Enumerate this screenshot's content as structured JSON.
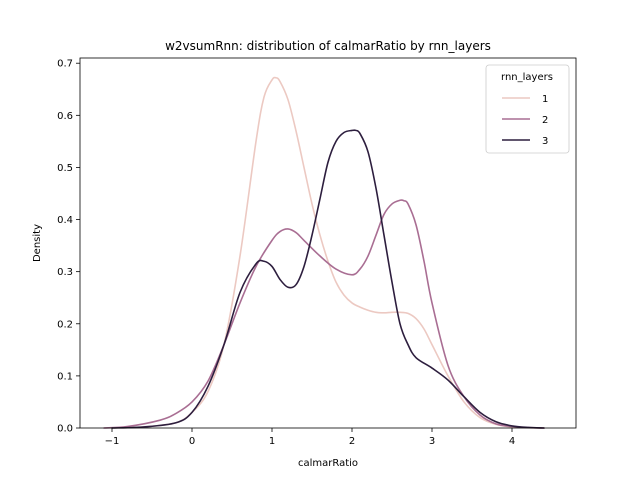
{
  "chart_data": {
    "type": "line",
    "title": "w2vsumRnn: distribution of calmarRatio by rnn_layers",
    "xlabel": "calmarRatio",
    "ylabel": "Density",
    "xlim": [
      -1.4,
      4.8
    ],
    "ylim": [
      0,
      0.71
    ],
    "xticks": [
      -1,
      0,
      1,
      2,
      3,
      4
    ],
    "yticks": [
      0.0,
      0.1,
      0.2,
      0.3,
      0.4,
      0.5,
      0.6,
      0.7
    ],
    "xtick_labels": [
      "−1",
      "0",
      "1",
      "2",
      "3",
      "4"
    ],
    "ytick_labels": [
      "0.0",
      "0.1",
      "0.2",
      "0.3",
      "0.4",
      "0.5",
      "0.6",
      "0.7"
    ],
    "legend": {
      "title": "rnn_layers",
      "placement": "top-right"
    },
    "grid": false,
    "series": [
      {
        "name": "1",
        "color": "#ecc9c2",
        "x": [
          -1.0,
          -0.6,
          -0.2,
          0.0,
          0.2,
          0.4,
          0.6,
          0.8,
          0.9,
          1.0,
          1.05,
          1.1,
          1.2,
          1.3,
          1.4,
          1.5,
          1.6,
          1.7,
          1.8,
          1.9,
          2.0,
          2.1,
          2.2,
          2.3,
          2.4,
          2.5,
          2.6,
          2.7,
          2.8,
          2.9,
          3.0,
          3.2,
          3.4,
          3.6,
          3.8,
          4.0,
          4.2,
          4.4
        ],
        "values": [
          0.0,
          0.002,
          0.01,
          0.03,
          0.07,
          0.16,
          0.33,
          0.55,
          0.635,
          0.668,
          0.672,
          0.665,
          0.63,
          0.57,
          0.5,
          0.43,
          0.37,
          0.32,
          0.28,
          0.255,
          0.24,
          0.232,
          0.226,
          0.222,
          0.221,
          0.222,
          0.222,
          0.22,
          0.21,
          0.19,
          0.16,
          0.1,
          0.05,
          0.02,
          0.007,
          0.002,
          0.0005,
          0.0
        ]
      },
      {
        "name": "2",
        "color": "#a96e93",
        "x": [
          -1.1,
          -0.8,
          -0.4,
          -0.2,
          0.0,
          0.2,
          0.4,
          0.6,
          0.8,
          1.0,
          1.1,
          1.2,
          1.3,
          1.4,
          1.6,
          1.8,
          2.0,
          2.1,
          2.2,
          2.3,
          2.4,
          2.5,
          2.6,
          2.65,
          2.7,
          2.8,
          2.9,
          3.0,
          3.2,
          3.4,
          3.6,
          3.8,
          4.0,
          4.2,
          4.4
        ],
        "values": [
          0.0,
          0.003,
          0.015,
          0.028,
          0.05,
          0.09,
          0.16,
          0.24,
          0.31,
          0.36,
          0.377,
          0.382,
          0.375,
          0.36,
          0.33,
          0.305,
          0.294,
          0.305,
          0.33,
          0.37,
          0.41,
          0.43,
          0.437,
          0.436,
          0.43,
          0.39,
          0.32,
          0.24,
          0.12,
          0.06,
          0.025,
          0.008,
          0.003,
          0.0008,
          0.0
        ]
      },
      {
        "name": "3",
        "color": "#2d1e3e",
        "x": [
          -1.0,
          -0.6,
          -0.2,
          0.0,
          0.2,
          0.4,
          0.6,
          0.8,
          0.9,
          1.0,
          1.1,
          1.2,
          1.3,
          1.4,
          1.5,
          1.6,
          1.7,
          1.8,
          1.9,
          2.0,
          2.05,
          2.1,
          2.2,
          2.3,
          2.4,
          2.5,
          2.6,
          2.7,
          2.8,
          3.0,
          3.2,
          3.4,
          3.6,
          3.8,
          4.0,
          4.2,
          4.4
        ],
        "values": [
          0.0,
          0.002,
          0.01,
          0.03,
          0.08,
          0.16,
          0.26,
          0.315,
          0.32,
          0.31,
          0.285,
          0.27,
          0.275,
          0.31,
          0.37,
          0.44,
          0.51,
          0.55,
          0.567,
          0.571,
          0.571,
          0.565,
          0.53,
          0.46,
          0.37,
          0.28,
          0.2,
          0.16,
          0.135,
          0.115,
          0.092,
          0.06,
          0.03,
          0.012,
          0.004,
          0.001,
          0.0
        ]
      }
    ]
  }
}
